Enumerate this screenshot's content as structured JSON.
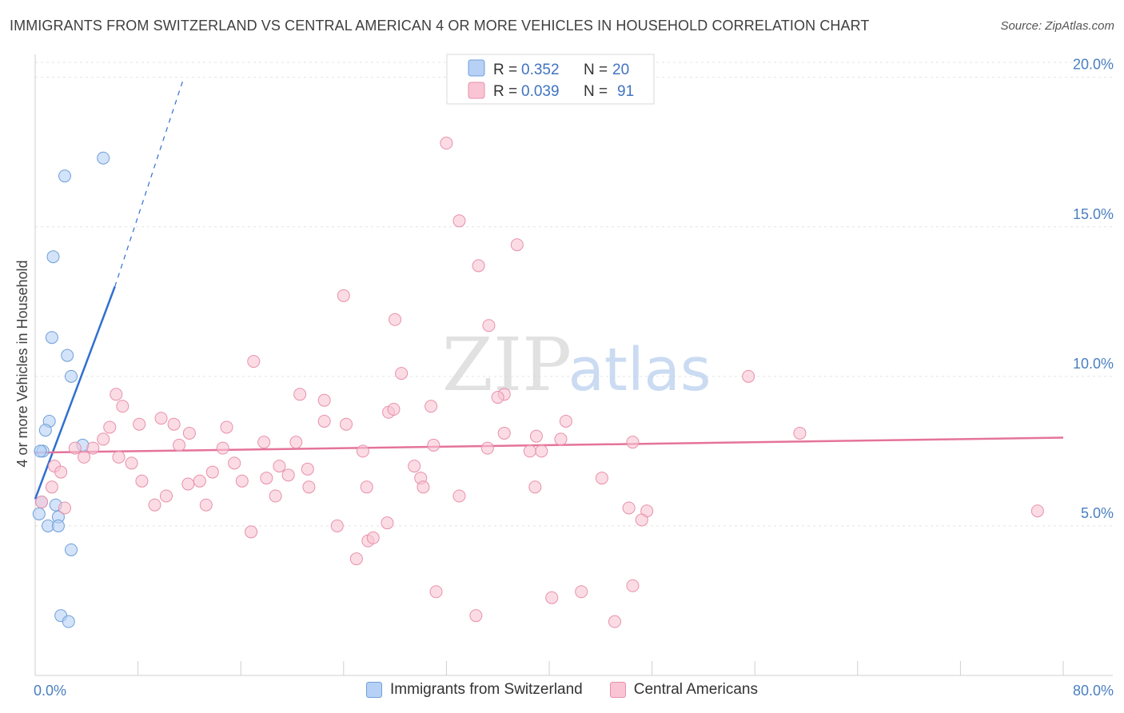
{
  "title": "IMMIGRANTS FROM SWITZERLAND VS CENTRAL AMERICAN 4 OR MORE VEHICLES IN HOUSEHOLD CORRELATION CHART",
  "source": "Source: ZipAtlas.com",
  "watermark": {
    "zip": "ZIP",
    "atlas": "atlas"
  },
  "chart_data": {
    "type": "scatter",
    "xlim": [
      0,
      80
    ],
    "ylim": [
      0,
      20.5
    ],
    "ylabel": "4 or more Vehicles in Household",
    "x_tick_labels": [
      {
        "value": 0,
        "label": "0.0%"
      },
      {
        "value": 80,
        "label": "80.0%"
      }
    ],
    "y_tick_labels": [
      {
        "value": 5,
        "label": "5.0%"
      },
      {
        "value": 10,
        "label": "10.0%"
      },
      {
        "value": 15,
        "label": "15.0%"
      },
      {
        "value": 20,
        "label": "20.0%"
      }
    ],
    "grid": true,
    "legend": [
      {
        "r_label": "R =",
        "r_value": "0.352",
        "n_label": "N =",
        "n_value": "20"
      },
      {
        "r_label": "R =",
        "r_value": "0.039",
        "n_label": "N =",
        "n_value": "91"
      }
    ],
    "series": [
      {
        "name": "Immigrants from Switzerland",
        "fill": "#b6d1f5",
        "stroke": "#6f9fd8",
        "line_color": "#2f6fd0",
        "trend": {
          "x0": 0.0,
          "y0": 5.9,
          "x1": 6.2,
          "y1": 13.0,
          "dash_to_x": 11.5,
          "dash_to_y": 19.9
        },
        "points": [
          [
            5.3,
            17.3
          ],
          [
            2.3,
            16.7
          ],
          [
            1.4,
            14.0
          ],
          [
            1.3,
            11.3
          ],
          [
            2.5,
            10.7
          ],
          [
            2.8,
            10.0
          ],
          [
            1.1,
            8.5
          ],
          [
            0.8,
            8.2
          ],
          [
            3.7,
            7.7
          ],
          [
            0.6,
            7.5
          ],
          [
            0.4,
            7.5
          ],
          [
            0.5,
            5.8
          ],
          [
            1.6,
            5.7
          ],
          [
            0.3,
            5.4
          ],
          [
            1.8,
            5.3
          ],
          [
            1.0,
            5.0
          ],
          [
            1.8,
            5.0
          ],
          [
            2.8,
            4.2
          ],
          [
            2.0,
            2.0
          ],
          [
            2.6,
            1.8
          ]
        ]
      },
      {
        "name": "Central Americans",
        "fill": "#f9c4d4",
        "stroke": "#e890ab",
        "line_color": "#e5739b",
        "trend": {
          "x0": 0.0,
          "y0": 7.45,
          "x1": 80.0,
          "y1": 7.95
        },
        "points": [
          [
            32.0,
            17.8
          ],
          [
            33.0,
            15.2
          ],
          [
            37.5,
            14.4
          ],
          [
            34.5,
            13.7
          ],
          [
            24.0,
            12.7
          ],
          [
            28.0,
            11.9
          ],
          [
            35.3,
            11.7
          ],
          [
            17.0,
            10.5
          ],
          [
            28.5,
            10.1
          ],
          [
            55.5,
            10.0
          ],
          [
            6.3,
            9.4
          ],
          [
            20.6,
            9.4
          ],
          [
            36.5,
            9.4
          ],
          [
            6.8,
            9.0
          ],
          [
            22.5,
            9.2
          ],
          [
            36.0,
            9.3
          ],
          [
            30.8,
            9.0
          ],
          [
            27.5,
            8.8
          ],
          [
            27.9,
            8.9
          ],
          [
            9.8,
            8.6
          ],
          [
            22.5,
            8.5
          ],
          [
            24.2,
            8.4
          ],
          [
            41.3,
            8.5
          ],
          [
            5.8,
            8.3
          ],
          [
            8.1,
            8.4
          ],
          [
            10.8,
            8.4
          ],
          [
            14.9,
            8.3
          ],
          [
            12.0,
            8.1
          ],
          [
            36.5,
            8.1
          ],
          [
            39.0,
            8.0
          ],
          [
            59.5,
            8.1
          ],
          [
            5.3,
            7.9
          ],
          [
            17.8,
            7.8
          ],
          [
            20.3,
            7.8
          ],
          [
            40.9,
            7.9
          ],
          [
            46.5,
            7.8
          ],
          [
            3.1,
            7.6
          ],
          [
            4.5,
            7.6
          ],
          [
            11.2,
            7.7
          ],
          [
            14.6,
            7.6
          ],
          [
            31.0,
            7.7
          ],
          [
            35.2,
            7.6
          ],
          [
            25.5,
            7.5
          ],
          [
            38.5,
            7.5
          ],
          [
            39.4,
            7.5
          ],
          [
            3.8,
            7.3
          ],
          [
            6.5,
            7.3
          ],
          [
            1.5,
            7.0
          ],
          [
            15.5,
            7.1
          ],
          [
            7.5,
            7.1
          ],
          [
            19.0,
            7.0
          ],
          [
            29.5,
            7.0
          ],
          [
            21.2,
            6.9
          ],
          [
            2.0,
            6.8
          ],
          [
            13.8,
            6.8
          ],
          [
            19.7,
            6.7
          ],
          [
            18.0,
            6.6
          ],
          [
            8.3,
            6.5
          ],
          [
            12.8,
            6.5
          ],
          [
            16.1,
            6.5
          ],
          [
            30.0,
            6.6
          ],
          [
            44.1,
            6.6
          ],
          [
            11.9,
            6.4
          ],
          [
            21.3,
            6.3
          ],
          [
            25.8,
            6.3
          ],
          [
            30.2,
            6.3
          ],
          [
            38.9,
            6.3
          ],
          [
            1.3,
            6.3
          ],
          [
            10.2,
            6.0
          ],
          [
            18.7,
            6.0
          ],
          [
            33.0,
            6.0
          ],
          [
            9.3,
            5.7
          ],
          [
            13.3,
            5.7
          ],
          [
            2.3,
            5.6
          ],
          [
            0.5,
            5.8
          ],
          [
            46.2,
            5.6
          ],
          [
            47.6,
            5.5
          ],
          [
            78.0,
            5.5
          ],
          [
            47.2,
            5.2
          ],
          [
            27.4,
            5.1
          ],
          [
            23.5,
            5.0
          ],
          [
            25.9,
            4.5
          ],
          [
            16.8,
            4.8
          ],
          [
            26.3,
            4.6
          ],
          [
            25.0,
            3.9
          ],
          [
            31.2,
            2.8
          ],
          [
            42.5,
            2.8
          ],
          [
            46.5,
            3.0
          ],
          [
            34.3,
            2.0
          ],
          [
            40.2,
            2.6
          ],
          [
            45.1,
            1.8
          ]
        ]
      }
    ]
  }
}
